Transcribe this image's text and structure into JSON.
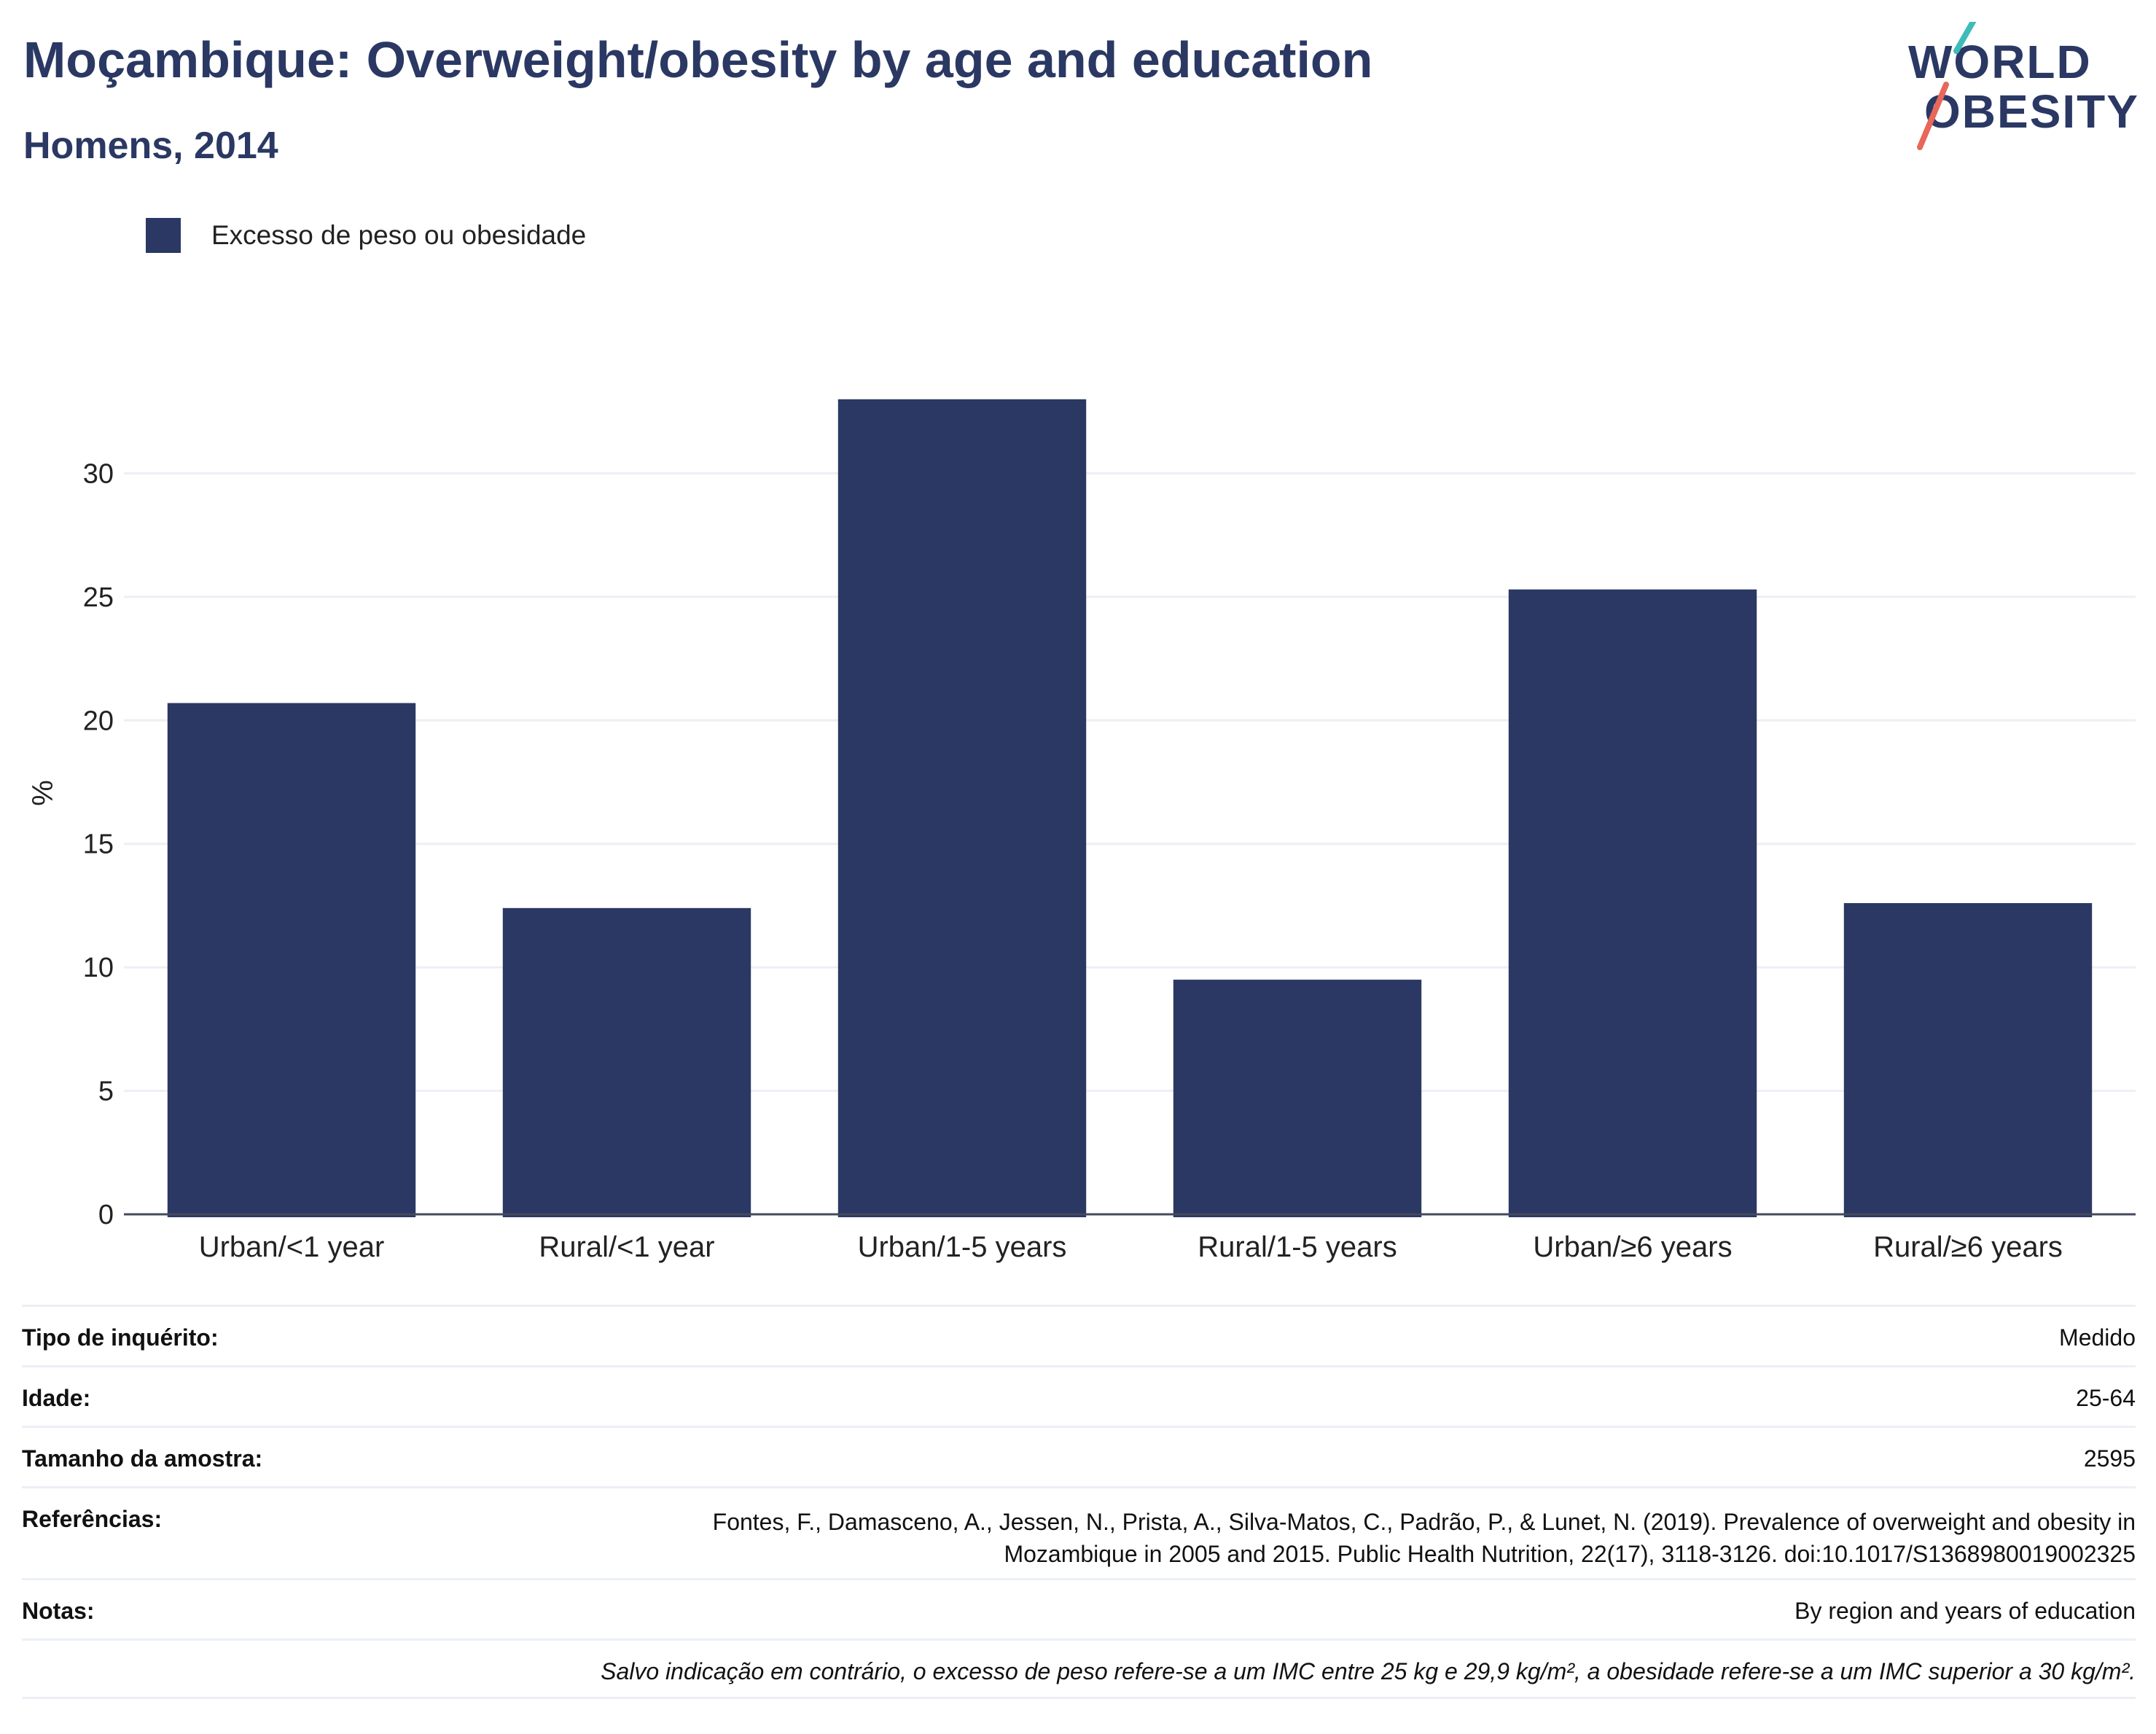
{
  "header": {
    "title": "Moçambique: Overweight/obesity by age and education",
    "subtitle": "Homens, 2014"
  },
  "logo": {
    "line1": "WORLD",
    "line2": "OBESITY",
    "accent_teal": "#3dbcb8",
    "accent_red": "#e8675a"
  },
  "legend": {
    "label": "Excesso de peso ou obesidade",
    "color": "#2a3863"
  },
  "chart_data": {
    "type": "bar",
    "categories": [
      "Urban/<1 year",
      "Rural/<1 year",
      "Urban/1-5 years",
      "Rural/1-5 years",
      "Urban/≥6 years",
      "Rural/≥6 years"
    ],
    "series": [
      {
        "name": "Excesso de peso ou obesidade",
        "values": [
          20.7,
          12.4,
          33.0,
          9.5,
          25.3,
          12.6
        ],
        "color": "#2a3863"
      }
    ],
    "ylabel": "%",
    "xlabel": "",
    "ylim": [
      0,
      35
    ],
    "yticks": [
      0,
      5,
      10,
      15,
      20,
      25,
      30
    ],
    "grid": true,
    "legend_position": "top-left"
  },
  "info": {
    "survey_type_label": "Tipo de inquérito:",
    "survey_type_value": "Medido",
    "age_label": "Idade:",
    "age_value": "25-64",
    "sample_label": "Tamanho da amostra:",
    "sample_value": "2595",
    "references_label": "Referências:",
    "references_line1": "Fontes, F., Damasceno, A., Jessen, N., Prista, A., Silva-Matos, C., Padrão, P., & Lunet, N. (2019). Prevalence of overweight and obesity in",
    "references_line2": "Mozambique in 2005 and 2015. Public Health Nutrition, 22(17), 3118-3126. doi:10.1017/S1368980019002325",
    "notes_label": "Notas:",
    "notes_value": "By region and years of education",
    "disclaimer": "Salvo indicação em contrário, o excesso de peso refere-se a um IMC entre 25 kg e 29,9 kg/m², a obesidade refere-se a um IMC superior a 30 kg/m²."
  }
}
